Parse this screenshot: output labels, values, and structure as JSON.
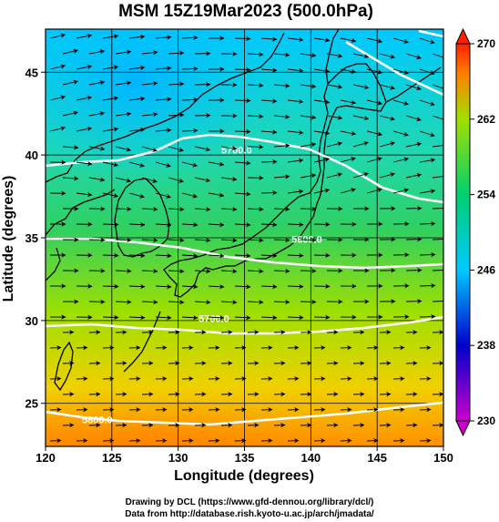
{
  "title": "MSM 15Z19Mar2023 (500.0hPa)",
  "x_axis": {
    "label": "Longitude (degrees)",
    "range": [
      120,
      150
    ],
    "ticks": [
      "120",
      "125",
      "130",
      "135",
      "140",
      "145",
      "150"
    ]
  },
  "y_axis": {
    "label": "Latitude  (degrees)",
    "range": [
      22.4,
      47.6
    ],
    "ticks": [
      "25",
      "30",
      "35",
      "40",
      "45"
    ]
  },
  "colorbar": {
    "min": 230,
    "max": 270,
    "ticks": [
      "230",
      "238",
      "246",
      "254",
      "262",
      "270"
    ],
    "colors": [
      "#cc00cc",
      "#0000cc",
      "#00c8ff",
      "#00d070",
      "#a0e000",
      "#ff8000",
      "#ff2000"
    ]
  },
  "contours": {
    "color": "#ffffff",
    "labels": [
      {
        "text": "5700.0",
        "lon": 134.4,
        "lat": 40.1
      },
      {
        "text": "5600.0",
        "lon": 139.7,
        "lat": 34.7
      },
      {
        "text": "5700.0",
        "lon": 132.7,
        "lat": 29.9
      },
      {
        "text": "5800.0",
        "lon": 123.9,
        "lat": 23.8
      }
    ]
  },
  "map": {
    "grid_lons": [
      120,
      125,
      130,
      135,
      140,
      145,
      150
    ],
    "grid_lats": [
      25,
      30,
      35,
      40,
      45
    ],
    "coastline_color": "#000000",
    "arrow_color": "#000000"
  },
  "credits": {
    "line1": "Drawing by DCL (https://www.gfd-dennou.org/library/dcl/)",
    "line2": "Data from http://database.rish.kyoto-u.ac.jp/arch/jmadata/"
  }
}
